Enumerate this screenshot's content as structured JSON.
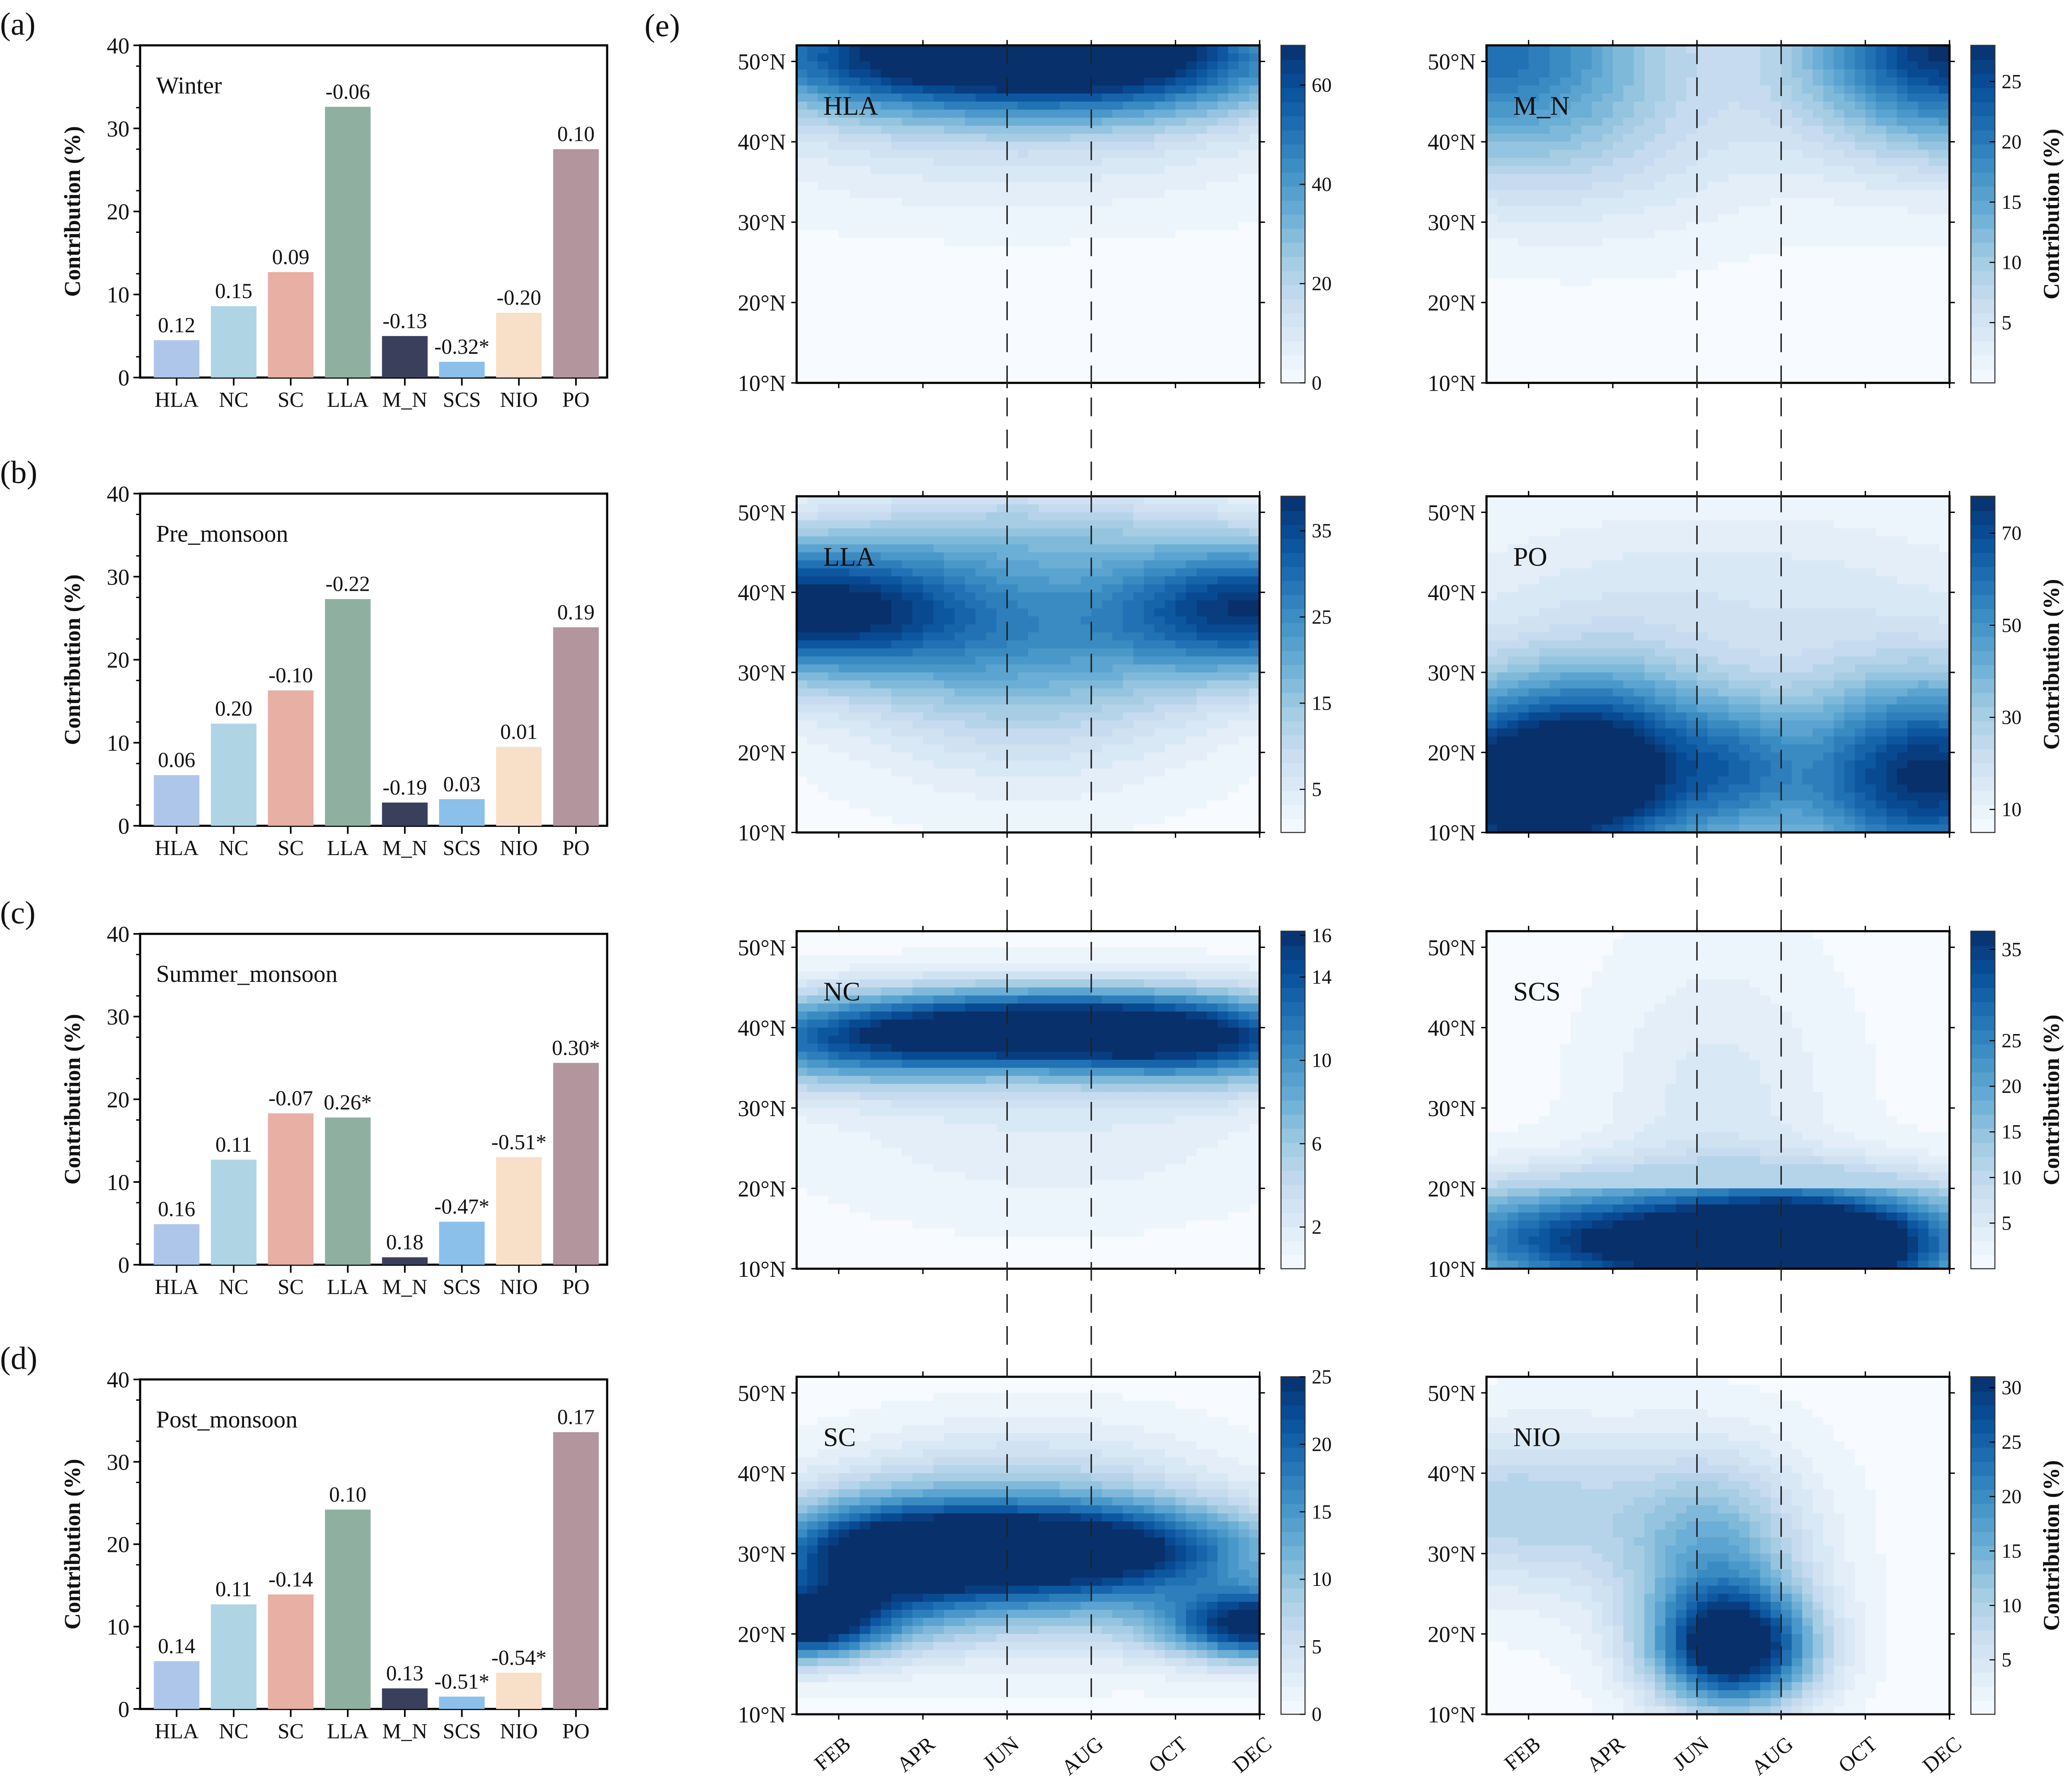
{
  "figure_label_e": "(e)",
  "chart_data": [
    {
      "type": "bar",
      "panel_label": "(a)",
      "title": "Winter",
      "ylabel": "Contribution (%)",
      "xlabel": "",
      "ylim": [
        0,
        40
      ],
      "yticks": [
        0,
        10,
        20,
        30,
        40
      ],
      "categories": [
        "HLA",
        "NC",
        "SC",
        "LLA",
        "M_N",
        "SCS",
        "NIO",
        "PO"
      ],
      "values": [
        4.5,
        8.6,
        12.7,
        32.6,
        5.0,
        1.9,
        7.8,
        27.5
      ],
      "data_labels": [
        "0.12",
        "0.15",
        "0.09",
        "-0.06",
        "-0.13",
        "-0.32*",
        "-0.20",
        "0.10"
      ],
      "colors": [
        "#aec6ea",
        "#afd5e5",
        "#e8afa4",
        "#8fb0a0",
        "#3a405c",
        "#8bc0eb",
        "#f8dfc7",
        "#b3959e"
      ]
    },
    {
      "type": "bar",
      "panel_label": "(b)",
      "title": "Pre_monsoon",
      "ylabel": "Contribution (%)",
      "xlabel": "",
      "ylim": [
        0,
        40
      ],
      "yticks": [
        0,
        10,
        20,
        30,
        40
      ],
      "categories": [
        "HLA",
        "NC",
        "SC",
        "LLA",
        "M_N",
        "SCS",
        "NIO",
        "PO"
      ],
      "values": [
        6.1,
        12.3,
        16.3,
        27.3,
        2.8,
        3.2,
        9.5,
        23.9
      ],
      "data_labels": [
        "0.06",
        "0.20",
        "-0.10",
        "-0.22",
        "-0.19",
        "0.03",
        "0.01",
        "0.19"
      ],
      "colors": [
        "#aec6ea",
        "#afd5e5",
        "#e8afa4",
        "#8fb0a0",
        "#3a405c",
        "#8bc0eb",
        "#f8dfc7",
        "#b3959e"
      ]
    },
    {
      "type": "bar",
      "panel_label": "(c)",
      "title": "Summer_monsoon",
      "ylabel": "Contribution (%)",
      "xlabel": "",
      "ylim": [
        0,
        40
      ],
      "yticks": [
        0,
        10,
        20,
        30,
        40
      ],
      "categories": [
        "HLA",
        "NC",
        "SC",
        "LLA",
        "M_N",
        "SCS",
        "NIO",
        "PO"
      ],
      "values": [
        4.9,
        12.7,
        18.3,
        17.8,
        0.9,
        5.2,
        13.0,
        24.4
      ],
      "data_labels": [
        "0.16",
        "0.11",
        "-0.07",
        "0.26*",
        "0.18",
        "-0.47*",
        "-0.51*",
        "0.30*"
      ],
      "colors": [
        "#aec6ea",
        "#afd5e5",
        "#e8afa4",
        "#8fb0a0",
        "#3a405c",
        "#8bc0eb",
        "#f8dfc7",
        "#b3959e"
      ]
    },
    {
      "type": "bar",
      "panel_label": "(d)",
      "title": "Post_monsoon",
      "ylabel": "Contribution (%)",
      "xlabel": "",
      "ylim": [
        0,
        40
      ],
      "yticks": [
        0,
        10,
        20,
        30,
        40
      ],
      "categories": [
        "HLA",
        "NC",
        "SC",
        "LLA",
        "M_N",
        "SCS",
        "NIO",
        "PO"
      ],
      "values": [
        5.8,
        12.7,
        13.9,
        24.2,
        2.5,
        1.5,
        4.4,
        33.6
      ],
      "data_labels": [
        "0.14",
        "0.11",
        "-0.14",
        "0.10",
        "0.13",
        "-0.51*",
        "-0.54*",
        "0.17"
      ],
      "colors": [
        "#aec6ea",
        "#afd5e5",
        "#e8afa4",
        "#8fb0a0",
        "#3a405c",
        "#8bc0eb",
        "#f8dfc7",
        "#b3959e"
      ]
    },
    {
      "type": "heatmap",
      "title": "HLA",
      "x": [
        "JAN",
        "FEB",
        "MAR",
        "APR",
        "MAY",
        "JUN",
        "JUL",
        "AUG",
        "SEP",
        "OCT",
        "NOV",
        "DEC"
      ],
      "xticks": [
        "FEB",
        "APR",
        "JUN",
        "AUG",
        "OCT",
        "DEC"
      ],
      "ylim": [
        10,
        52
      ],
      "yticks": [
        "10°N",
        "20°N",
        "30°N",
        "40°N",
        "50°N"
      ],
      "colorbar_ticks": [
        0,
        20,
        40,
        60
      ],
      "colorbar_range": [
        0,
        68
      ],
      "colorbar_label": "",
      "reference_lines": [
        "JUN",
        "AUG"
      ]
    },
    {
      "type": "heatmap",
      "title": "M_N",
      "x": [
        "JAN",
        "FEB",
        "MAR",
        "APR",
        "MAY",
        "JUN",
        "JUL",
        "AUG",
        "SEP",
        "OCT",
        "NOV",
        "DEC"
      ],
      "xticks": [
        "FEB",
        "APR",
        "JUN",
        "AUG",
        "OCT",
        "DEC"
      ],
      "ylim": [
        10,
        52
      ],
      "yticks": [
        "10°N",
        "20°N",
        "30°N",
        "40°N",
        "50°N"
      ],
      "colorbar_ticks": [
        5,
        10,
        15,
        20,
        25
      ],
      "colorbar_range": [
        0,
        28
      ],
      "colorbar_label": "Contribution (%)",
      "reference_lines": [
        "JUN",
        "AUG"
      ]
    },
    {
      "type": "heatmap",
      "title": "LLA",
      "x": [
        "JAN",
        "FEB",
        "MAR",
        "APR",
        "MAY",
        "JUN",
        "JUL",
        "AUG",
        "SEP",
        "OCT",
        "NOV",
        "DEC"
      ],
      "xticks": [
        "FEB",
        "APR",
        "JUN",
        "AUG",
        "OCT",
        "DEC"
      ],
      "ylim": [
        10,
        52
      ],
      "yticks": [
        "10°N",
        "20°N",
        "30°N",
        "40°N",
        "50°N"
      ],
      "colorbar_ticks": [
        5,
        15,
        25,
        35
      ],
      "colorbar_range": [
        0,
        39
      ],
      "colorbar_label": "",
      "reference_lines": [
        "JUN",
        "AUG"
      ]
    },
    {
      "type": "heatmap",
      "title": "PO",
      "x": [
        "JAN",
        "FEB",
        "MAR",
        "APR",
        "MAY",
        "JUN",
        "JUL",
        "AUG",
        "SEP",
        "OCT",
        "NOV",
        "DEC"
      ],
      "xticks": [
        "FEB",
        "APR",
        "JUN",
        "AUG",
        "OCT",
        "DEC"
      ],
      "ylim": [
        10,
        52
      ],
      "yticks": [
        "10°N",
        "20°N",
        "30°N",
        "40°N",
        "50°N"
      ],
      "colorbar_ticks": [
        10,
        30,
        50,
        70
      ],
      "colorbar_range": [
        5,
        78
      ],
      "colorbar_label": "Contribution (%)",
      "reference_lines": [
        "JUN",
        "AUG"
      ]
    },
    {
      "type": "heatmap",
      "title": "NC",
      "x": [
        "JAN",
        "FEB",
        "MAR",
        "APR",
        "MAY",
        "JUN",
        "JUL",
        "AUG",
        "SEP",
        "OCT",
        "NOV",
        "DEC"
      ],
      "xticks": [
        "FEB",
        "APR",
        "JUN",
        "AUG",
        "OCT",
        "DEC"
      ],
      "ylim": [
        10,
        52
      ],
      "yticks": [
        "10°N",
        "20°N",
        "30°N",
        "40°N",
        "50°N"
      ],
      "colorbar_ticks": [
        2,
        6,
        10,
        14,
        16
      ],
      "colorbar_range": [
        0,
        16.2
      ],
      "colorbar_label": "",
      "reference_lines": [
        "JUN",
        "AUG"
      ]
    },
    {
      "type": "heatmap",
      "title": "SCS",
      "x": [
        "JAN",
        "FEB",
        "MAR",
        "APR",
        "MAY",
        "JUN",
        "JUL",
        "AUG",
        "SEP",
        "OCT",
        "NOV",
        "DEC"
      ],
      "xticks": [
        "FEB",
        "APR",
        "JUN",
        "AUG",
        "OCT",
        "DEC"
      ],
      "ylim": [
        10,
        52
      ],
      "yticks": [
        "10°N",
        "20°N",
        "30°N",
        "40°N",
        "50°N"
      ],
      "colorbar_ticks": [
        5,
        10,
        15,
        20,
        25,
        35
      ],
      "colorbar_range": [
        0,
        37
      ],
      "colorbar_label": "Contribution (%)",
      "reference_lines": [
        "JUN",
        "AUG"
      ]
    },
    {
      "type": "heatmap",
      "title": "SC",
      "x": [
        "JAN",
        "FEB",
        "MAR",
        "APR",
        "MAY",
        "JUN",
        "JUL",
        "AUG",
        "SEP",
        "OCT",
        "NOV",
        "DEC"
      ],
      "xticks": [
        "FEB",
        "APR",
        "JUN",
        "AUG",
        "OCT",
        "DEC"
      ],
      "ylim": [
        10,
        52
      ],
      "yticks": [
        "10°N",
        "20°N",
        "30°N",
        "40°N",
        "50°N"
      ],
      "colorbar_ticks": [
        0,
        5,
        10,
        15,
        20,
        25
      ],
      "colorbar_range": [
        0,
        25
      ],
      "colorbar_label": "",
      "reference_lines": [
        "JUN",
        "AUG"
      ]
    },
    {
      "type": "heatmap",
      "title": "NIO",
      "x": [
        "JAN",
        "FEB",
        "MAR",
        "APR",
        "MAY",
        "JUN",
        "JUL",
        "AUG",
        "SEP",
        "OCT",
        "NOV",
        "DEC"
      ],
      "xticks": [
        "FEB",
        "APR",
        "JUN",
        "AUG",
        "OCT",
        "DEC"
      ],
      "ylim": [
        10,
        52
      ],
      "yticks": [
        "10°N",
        "20°N",
        "30°N",
        "40°N",
        "50°N"
      ],
      "colorbar_ticks": [
        5,
        10,
        15,
        20,
        25,
        30
      ],
      "colorbar_range": [
        0,
        31
      ],
      "colorbar_label": "Contribution (%)",
      "reference_lines": [
        "JUN",
        "AUG"
      ]
    }
  ]
}
